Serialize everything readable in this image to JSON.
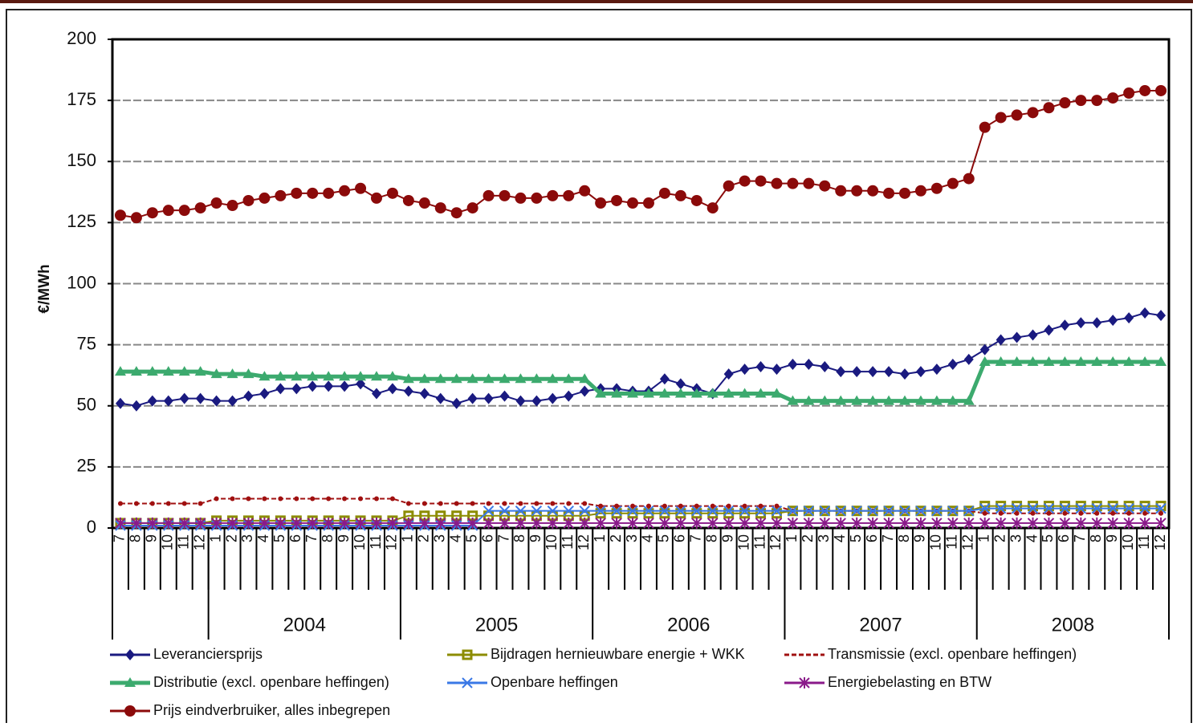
{
  "chart_data": {
    "type": "line",
    "y_label": "€/MWh",
    "categories": [
      "7",
      "8",
      "9",
      "10",
      "11",
      "12",
      "1",
      "2",
      "3",
      "4",
      "5",
      "6",
      "7",
      "8",
      "9",
      "10",
      "11",
      "12",
      "1",
      "2",
      "3",
      "4",
      "5",
      "6",
      "7",
      "8",
      "9",
      "10",
      "11",
      "12",
      "1",
      "2",
      "3",
      "4",
      "5",
      "6",
      "7",
      "8",
      "9",
      "10",
      "11",
      "12",
      "1",
      "2",
      "3",
      "4",
      "5",
      "6",
      "7",
      "8",
      "9",
      "10",
      "11",
      "12",
      "1",
      "2",
      "3",
      "4",
      "5",
      "6",
      "7",
      "8",
      "9",
      "10",
      "11",
      "12"
    ],
    "years": [
      null,
      "2004",
      "2005",
      "2006",
      "2007",
      "2008"
    ],
    "ylim": [
      0,
      200
    ],
    "yticks": [
      0,
      25,
      50,
      75,
      100,
      125,
      150,
      175,
      200
    ],
    "grid": true,
    "series": [
      {
        "name": "Leveranciersprijs",
        "color": "#1a1a80",
        "marker": "diamond",
        "values": [
          51,
          50,
          52,
          52,
          53,
          53,
          52,
          52,
          54,
          55,
          57,
          57,
          58,
          58,
          58,
          59,
          55,
          57,
          56,
          55,
          53,
          51,
          53,
          53,
          54,
          52,
          52,
          53,
          54,
          56,
          57,
          57,
          56,
          56,
          61,
          59,
          57,
          55,
          63,
          65,
          66,
          65,
          67,
          67,
          66,
          64,
          64,
          64,
          64,
          63,
          64,
          65,
          67,
          69,
          73,
          77,
          78,
          79,
          81,
          83,
          84,
          84,
          85,
          86,
          88,
          87
        ]
      },
      {
        "name": "Bijdragen hernieuwbare energie + WKK",
        "color": "#8c8c00",
        "marker": "square",
        "values": [
          2,
          2,
          2,
          2,
          2,
          2,
          3,
          3,
          3,
          3,
          3,
          3,
          3,
          3,
          3,
          3,
          3,
          3,
          5,
          5,
          5,
          5,
          5,
          5,
          5,
          5,
          5,
          5,
          5,
          5,
          6,
          6,
          6,
          6,
          6,
          6,
          6,
          6,
          6,
          6,
          6,
          6,
          7,
          7,
          7,
          7,
          7,
          7,
          7,
          7,
          7,
          7,
          7,
          7,
          9,
          9,
          9,
          9,
          9,
          9,
          9,
          9,
          9,
          9,
          9,
          9
        ]
      },
      {
        "name": "Transmissie (excl. openbare heffingen)",
        "color": "#a01010",
        "marker": "dot",
        "dashed": true,
        "values": [
          10,
          10,
          10,
          10,
          10,
          10,
          12,
          12,
          12,
          12,
          12,
          12,
          12,
          12,
          12,
          12,
          12,
          12,
          10,
          10,
          10,
          10,
          10,
          10,
          10,
          10,
          10,
          10,
          10,
          10,
          9,
          9,
          9,
          9,
          9,
          9,
          9,
          9,
          9,
          9,
          9,
          9,
          7,
          7,
          7,
          7,
          7,
          7,
          7,
          7,
          7,
          7,
          7,
          7,
          6,
          6,
          6,
          6,
          6,
          6,
          6,
          6,
          6,
          6,
          6,
          6
        ]
      },
      {
        "name": "Distributie (excl. openbare heffingen)",
        "color": "#3caa6e",
        "marker": "triangle",
        "values": [
          64,
          64,
          64,
          64,
          64,
          64,
          63,
          63,
          63,
          62,
          62,
          62,
          62,
          62,
          62,
          62,
          62,
          62,
          61,
          61,
          61,
          61,
          61,
          61,
          61,
          61,
          61,
          61,
          61,
          61,
          55,
          55,
          55,
          55,
          55,
          55,
          55,
          55,
          55,
          55,
          55,
          55,
          52,
          52,
          52,
          52,
          52,
          52,
          52,
          52,
          52,
          52,
          52,
          52,
          68,
          68,
          68,
          68,
          68,
          68,
          68,
          68,
          68,
          68,
          68,
          68
        ]
      },
      {
        "name": "Openbare heffingen",
        "color": "#3a78e6",
        "marker": "x",
        "values": [
          1,
          1,
          1,
          1,
          1,
          1,
          1,
          1,
          1,
          1,
          1,
          1,
          1,
          1,
          1,
          1,
          1,
          1,
          1,
          1,
          1,
          1,
          1,
          7,
          7,
          7,
          7,
          7,
          7,
          7,
          7,
          7,
          7,
          7,
          7,
          7,
          7,
          7,
          7,
          7,
          7,
          7,
          7,
          7,
          7,
          7,
          7,
          7,
          7,
          7,
          7,
          7,
          7,
          7,
          8,
          8,
          8,
          8,
          8,
          8,
          8,
          8,
          8,
          8,
          8,
          8
        ]
      },
      {
        "name": "Energiebelasting en BTW",
        "color": "#8a1a8a",
        "marker": "star",
        "values": [
          2,
          2,
          2,
          2,
          2,
          2,
          2,
          2,
          2,
          2,
          2,
          2,
          2,
          2,
          2,
          2,
          2,
          2,
          2,
          2,
          2,
          2,
          2,
          2,
          2,
          2,
          2,
          2,
          2,
          2,
          2,
          2,
          2,
          2,
          2,
          2,
          2,
          2,
          2,
          2,
          2,
          2,
          2,
          2,
          2,
          2,
          2,
          2,
          2,
          2,
          2,
          2,
          2,
          2,
          2,
          2,
          2,
          2,
          2,
          2,
          2,
          2,
          2,
          2,
          2,
          2
        ]
      },
      {
        "name": "Prijs eindverbruiker, alles inbegrepen",
        "color": "#8b0a0a",
        "marker": "circle",
        "values": [
          128,
          127,
          129,
          130,
          130,
          131,
          133,
          132,
          134,
          135,
          136,
          137,
          137,
          137,
          138,
          139,
          135,
          137,
          134,
          133,
          131,
          129,
          131,
          136,
          136,
          135,
          135,
          136,
          136,
          138,
          133,
          134,
          133,
          133,
          137,
          136,
          134,
          131,
          140,
          142,
          142,
          141,
          141,
          141,
          140,
          138,
          138,
          138,
          137,
          137,
          138,
          139,
          141,
          143,
          164,
          168,
          169,
          170,
          172,
          174,
          175,
          175,
          176,
          178,
          179,
          179
        ]
      }
    ]
  }
}
